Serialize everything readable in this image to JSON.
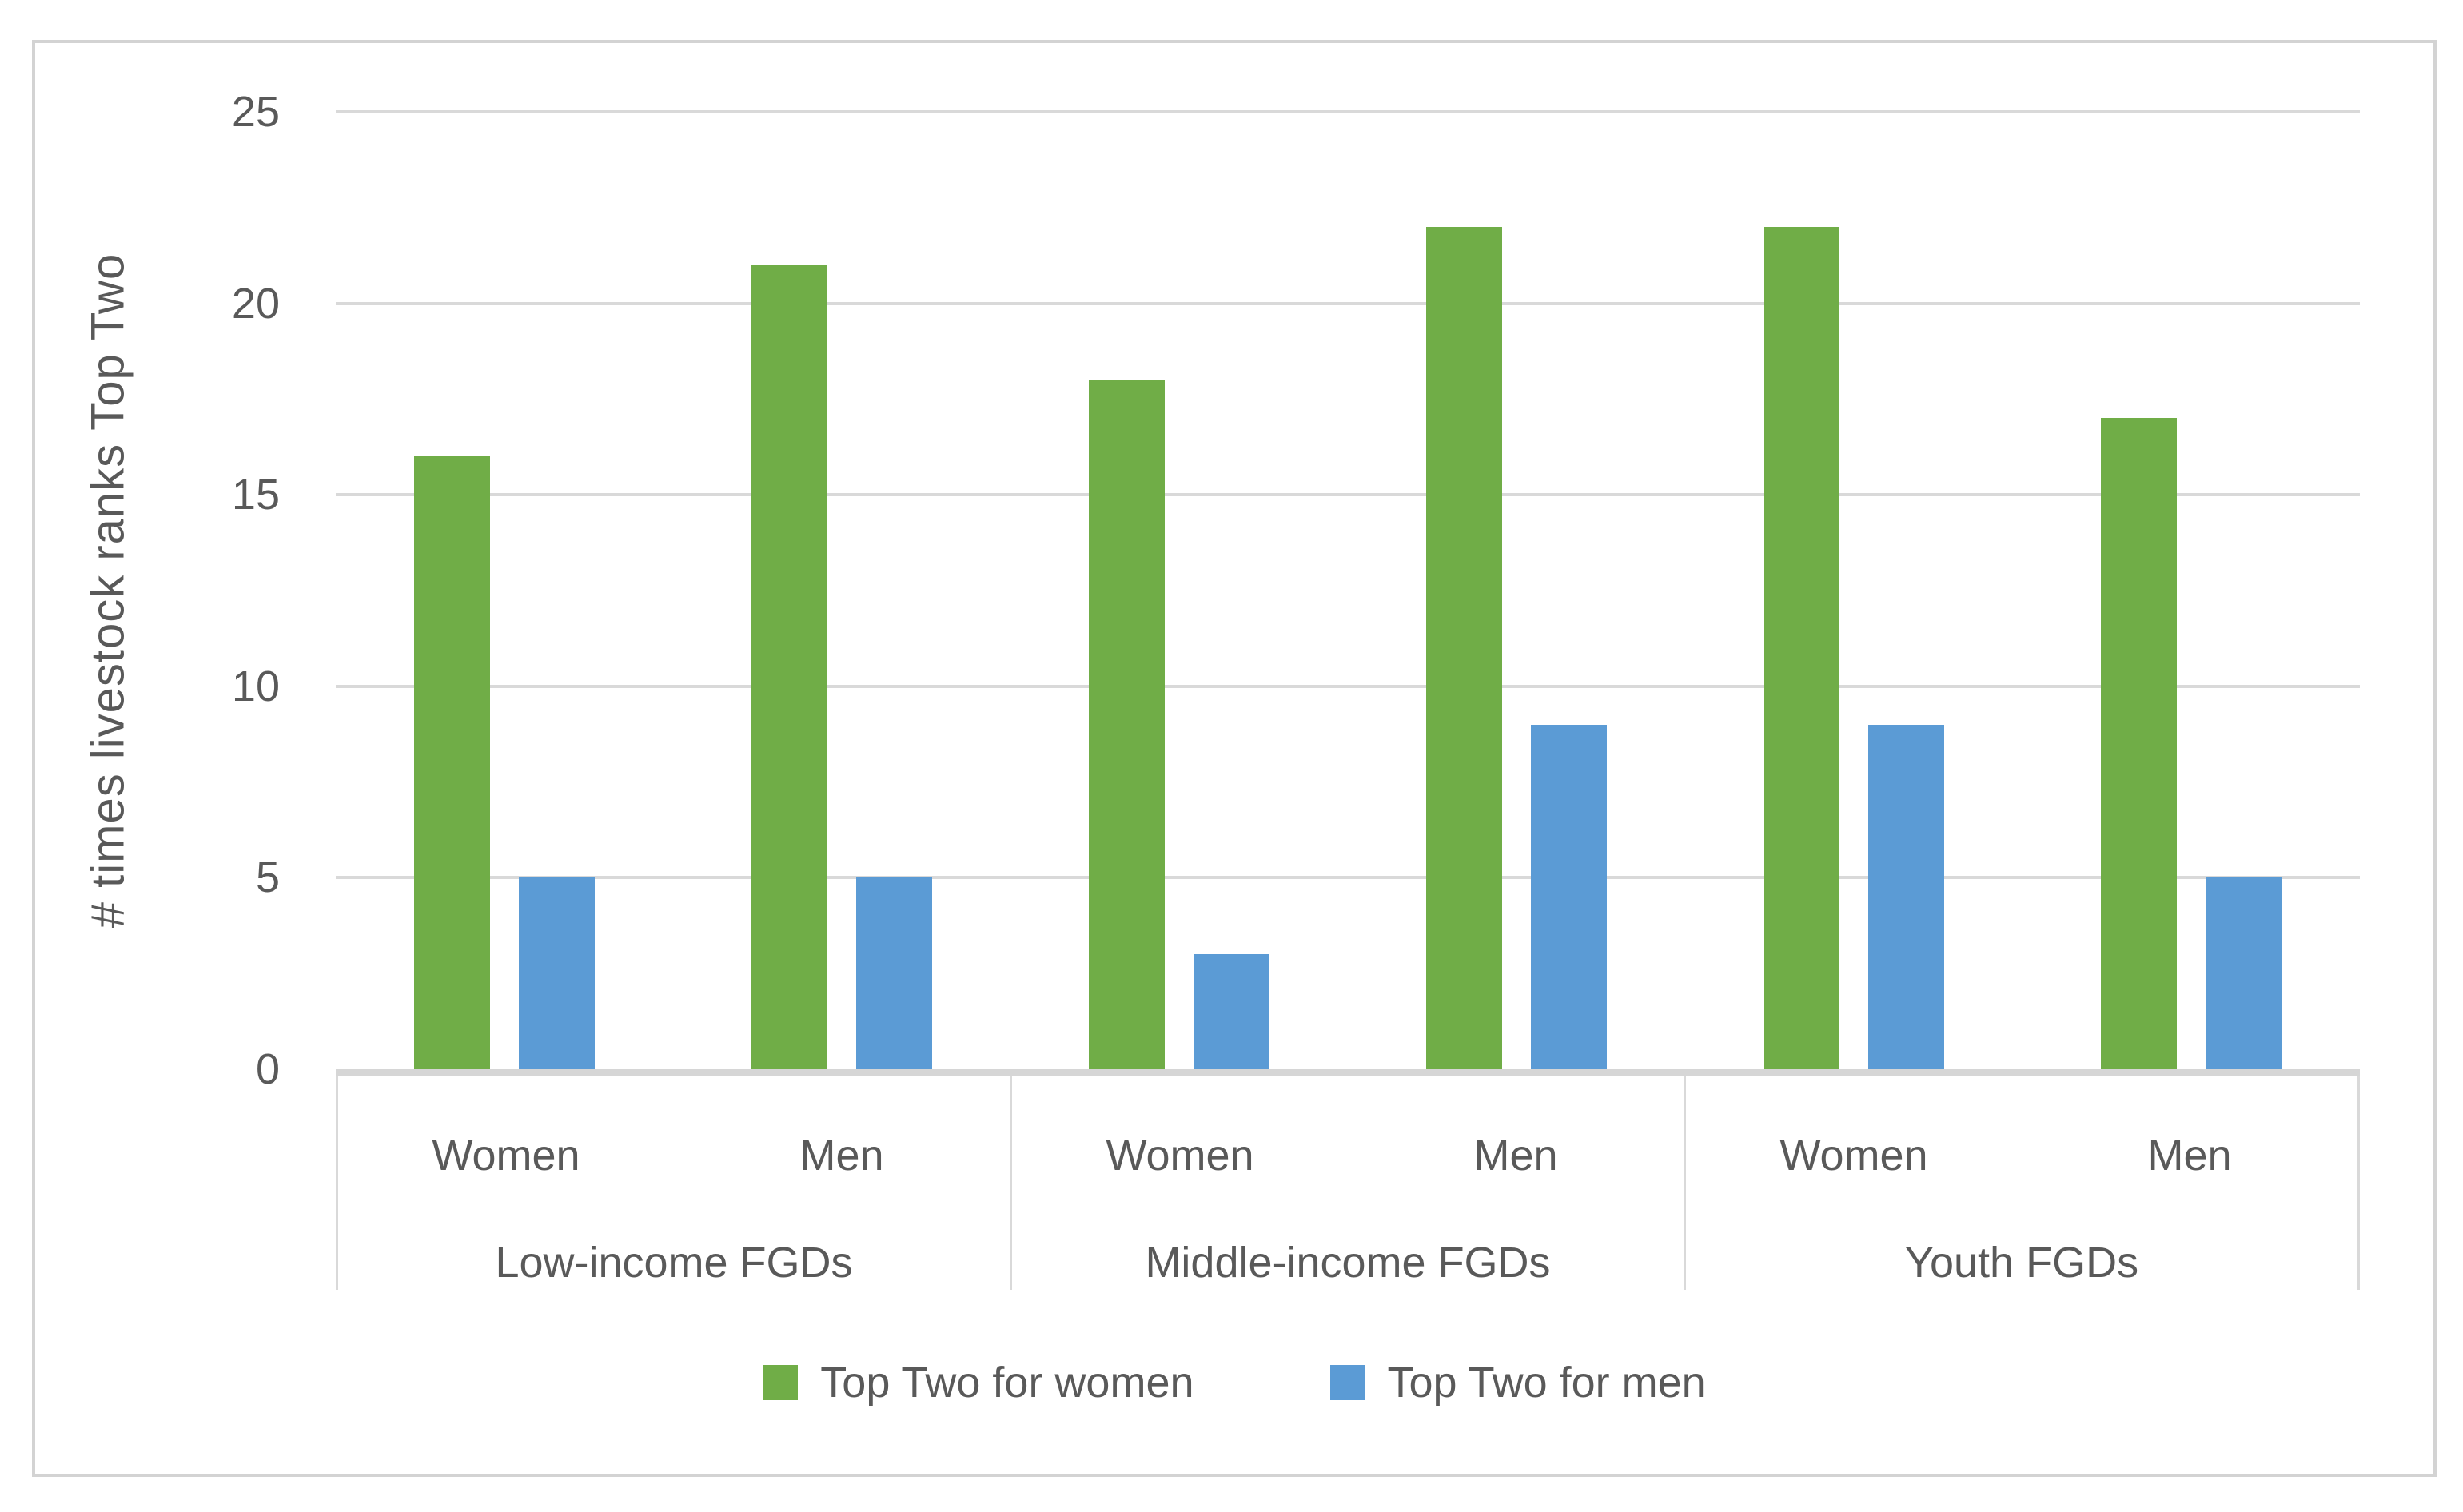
{
  "chart_data": {
    "type": "bar",
    "title": "",
    "ylabel": "# times livestock ranks Top Two",
    "xlabel": "",
    "ylim": [
      0,
      25
    ],
    "yticks": [
      0,
      5,
      10,
      15,
      20,
      25
    ],
    "grid": true,
    "legend_position": "bottom",
    "group_labels": [
      "Low-income FGDs",
      "Middle-income FGDs",
      "Youth FGDs"
    ],
    "subgroup_labels": [
      "Women",
      "Men"
    ],
    "categories": [
      "Low-income FGDs / Women",
      "Low-income FGDs / Men",
      "Middle-income FGDs / Women",
      "Middle-income FGDs / Men",
      "Youth FGDs / Women",
      "Youth FGDs / Men"
    ],
    "series": [
      {
        "name": "Top Two for women",
        "color": "#70AD47",
        "values": [
          16,
          21,
          18,
          22,
          22,
          17
        ]
      },
      {
        "name": "Top Two for men",
        "color": "#5B9BD5",
        "values": [
          5,
          5,
          3,
          9,
          9,
          5
        ]
      }
    ]
  },
  "colors": {
    "text": "#595959",
    "gridline": "#D9D9D9",
    "axis_line": "#D6D6D6",
    "frame_border": "#D3D3D3",
    "background": "#FFFFFF"
  }
}
